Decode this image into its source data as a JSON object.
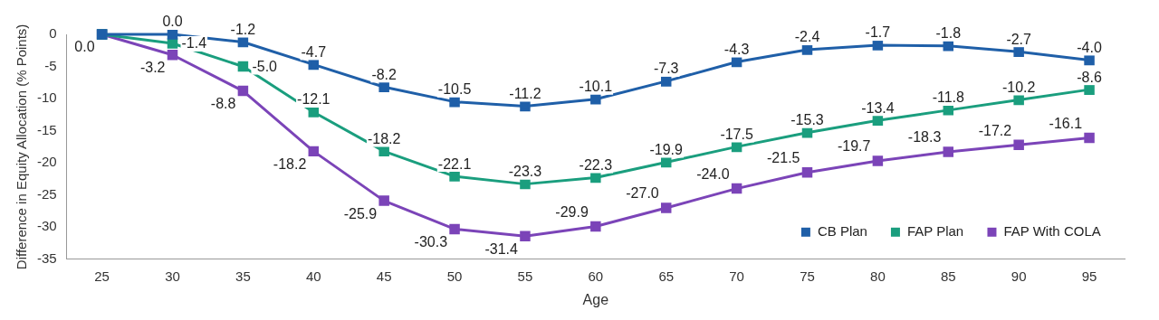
{
  "chart_data": {
    "type": "line",
    "xlabel": "Age",
    "ylabel": "Difference in Equity Allocation (% Points)",
    "categories": [
      "25",
      "30",
      "35",
      "40",
      "45",
      "50",
      "55",
      "60",
      "65",
      "70",
      "75",
      "80",
      "85",
      "90",
      "95"
    ],
    "series": [
      {
        "name": "CB Plan",
        "color": "#1f5fa8",
        "values": [
          0.0,
          0.0,
          -1.2,
          -4.7,
          -8.2,
          -10.5,
          -11.2,
          -10.1,
          -7.3,
          -4.3,
          -2.4,
          -1.7,
          -1.8,
          -2.7,
          -4.0
        ],
        "value_labels": [
          null,
          "0.0",
          "-1.2",
          "-4.7",
          "-8.2",
          "-10.5",
          "-11.2",
          "-10.1",
          "-7.3",
          "-4.3",
          "-2.4",
          "-1.7",
          "-1.8",
          "-2.7",
          "-4.0"
        ]
      },
      {
        "name": "FAP Plan",
        "color": "#1a9e7e",
        "values": [
          0.0,
          -1.4,
          -5.0,
          -12.1,
          -18.2,
          -22.1,
          -23.3,
          -22.3,
          -19.9,
          -17.5,
          -15.3,
          -13.4,
          -11.8,
          -10.2,
          -8.6
        ],
        "value_labels": [
          null,
          "-1.4",
          "-5.0",
          "-12.1",
          "-18.2",
          "-22.1",
          "-23.3",
          "-22.3",
          "-19.9",
          "-17.5",
          "-15.3",
          "-13.4",
          "-11.8",
          "-10.2",
          "-8.6"
        ]
      },
      {
        "name": "FAP With COLA",
        "color": "#7b44b8",
        "values": [
          0.0,
          -3.2,
          -8.8,
          -18.2,
          -25.9,
          -30.3,
          -31.4,
          -29.9,
          -27.0,
          -24.0,
          -21.5,
          -19.7,
          -18.3,
          -17.2,
          -16.1
        ],
        "value_labels": [
          "0.0",
          "-3.2",
          "-8.8",
          "-18.2",
          "-25.9",
          "-30.3",
          "-31.4",
          "-29.9",
          "-27.0",
          "-24.0",
          "-21.5",
          "-19.7",
          "-18.3",
          "-17.2",
          "-16.1"
        ]
      }
    ],
    "ylim": [
      -35,
      0
    ],
    "yticks": [
      -35,
      -30,
      -25,
      -20,
      -15,
      -10,
      -5,
      0
    ],
    "grid": false,
    "legend": "bottom right",
    "marker": "square",
    "line_style": "solid"
  }
}
